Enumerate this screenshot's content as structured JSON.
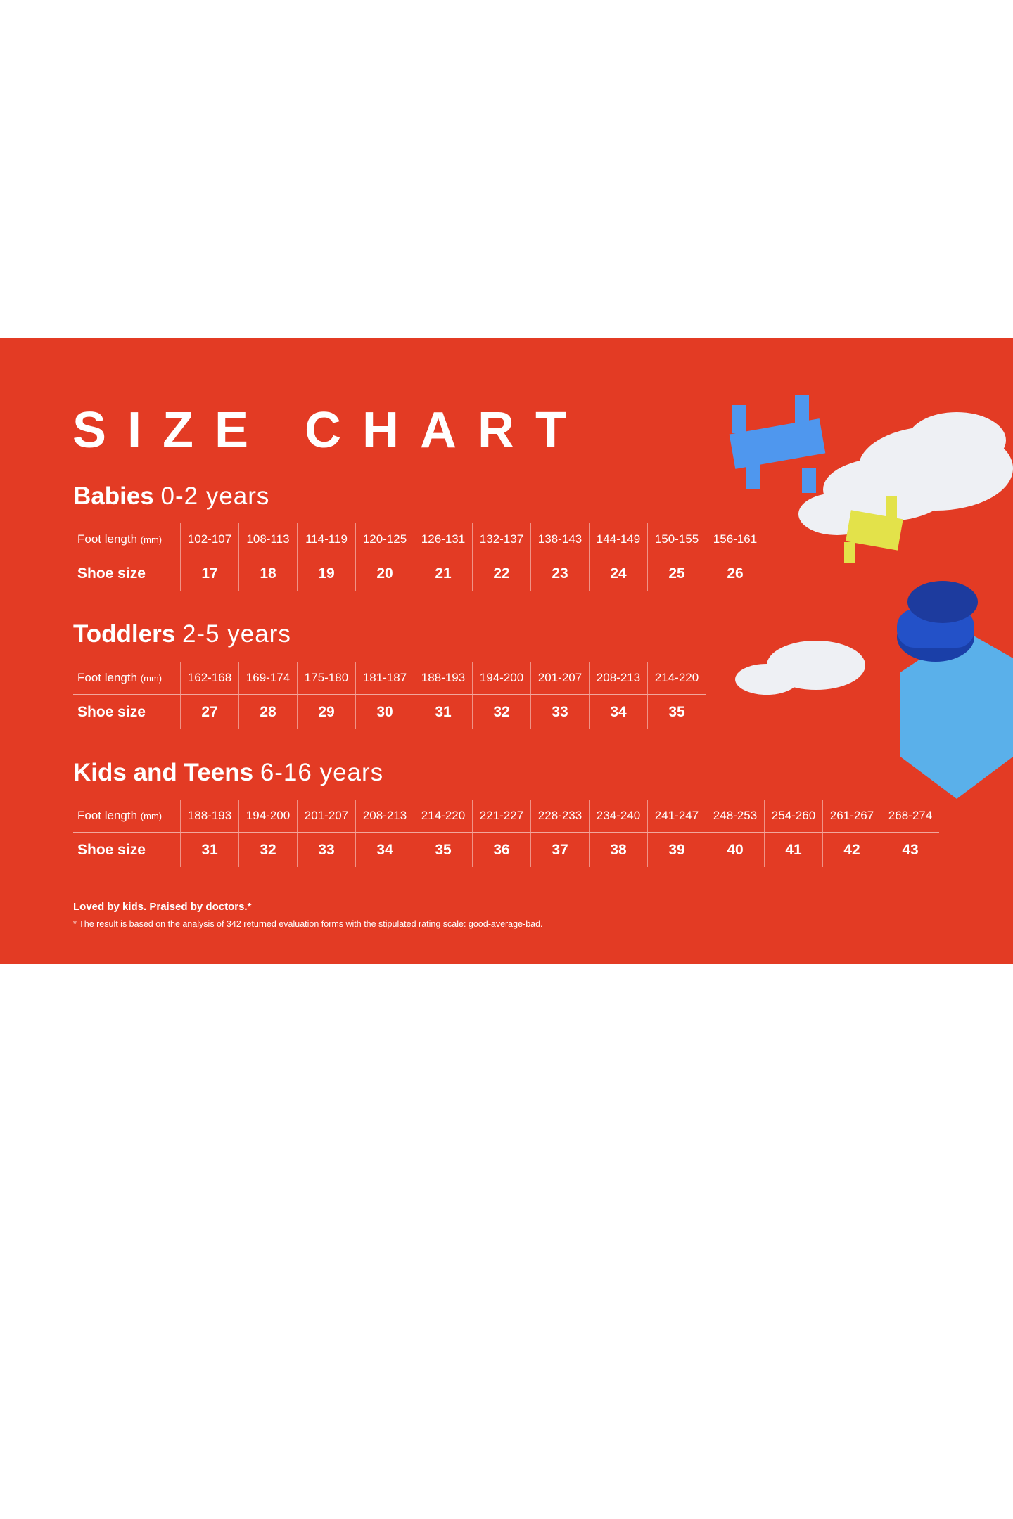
{
  "title": "SIZE CHART",
  "row_labels": {
    "foot_length": "Foot length",
    "foot_unit": "(mm)",
    "shoe_size": "Shoe size"
  },
  "sections": [
    {
      "name": "Babies",
      "ages": "0-2 years",
      "foot_length": [
        "102-107",
        "108-113",
        "114-119",
        "120-125",
        "126-131",
        "132-137",
        "138-143",
        "144-149",
        "150-155",
        "156-161"
      ],
      "shoe_size": [
        "17",
        "18",
        "19",
        "20",
        "21",
        "22",
        "23",
        "24",
        "25",
        "26"
      ]
    },
    {
      "name": "Toddlers",
      "ages": "2-5 years",
      "foot_length": [
        "162-168",
        "169-174",
        "175-180",
        "181-187",
        "188-193",
        "194-200",
        "201-207",
        "208-213",
        "214-220"
      ],
      "shoe_size": [
        "27",
        "28",
        "29",
        "30",
        "31",
        "32",
        "33",
        "34",
        "35"
      ]
    },
    {
      "name": "Kids and Teens",
      "ages": "6-16 years",
      "foot_length": [
        "188-193",
        "194-200",
        "201-207",
        "208-213",
        "214-220",
        "221-227",
        "228-233",
        "234-240",
        "241-247",
        "248-253",
        "254-260",
        "261-267",
        "268-274"
      ],
      "shoe_size": [
        "31",
        "32",
        "33",
        "34",
        "35",
        "36",
        "37",
        "38",
        "39",
        "40",
        "41",
        "42",
        "43"
      ]
    }
  ],
  "footer": {
    "tagline": "Loved by kids. Praised by doctors.*",
    "note": "* The result is based on the analysis of 342 returned evaluation forms with the stipulated rating scale: good-average-bad."
  },
  "colors": {
    "background": "#e33b24",
    "text": "#ffffff"
  }
}
